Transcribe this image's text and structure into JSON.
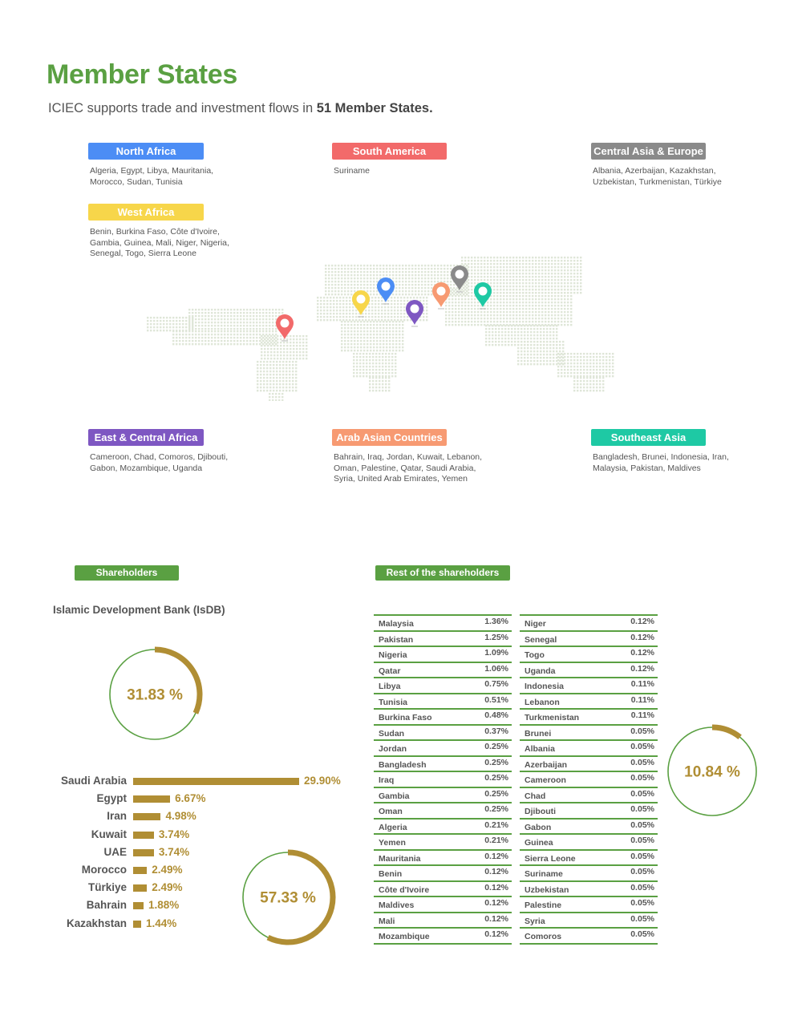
{
  "header": {
    "title": "Member States",
    "subtitle_prefix": "ICIEC supports trade and investment flows in ",
    "subtitle_bold": "51 Member States."
  },
  "regions": [
    {
      "key": "north_africa",
      "name": "North Africa",
      "color": "#4c8df5",
      "lines": [
        "Algeria, Egypt, Libya, Mauritania,",
        "Morocco, Sudan, Tunisia"
      ]
    },
    {
      "key": "south_america",
      "name": "South America",
      "color": "#f26a6a",
      "lines": [
        "Suriname"
      ]
    },
    {
      "key": "central_asia_europe",
      "name": "Central Asia & Europe",
      "color": "#8a8a8a",
      "lines": [
        "Albania, Azerbaijan, Kazakhstan,",
        "Uzbekistan, Turkmenistan, Türkiye"
      ]
    },
    {
      "key": "west_africa",
      "name": "West Africa",
      "color": "#f7d64a",
      "lines": [
        "Benin, Burkina Faso, Côte d'Ivoire,",
        "Gambia, Guinea, Mali, Niger, Nigeria,",
        "Senegal, Togo, Sierra Leone"
      ]
    },
    {
      "key": "east_central_africa",
      "name": "East & Central Africa",
      "color": "#7e57c2",
      "lines": [
        "Cameroon, Chad, Comoros, Djibouti,",
        "Gabon, Mozambique, Uganda"
      ]
    },
    {
      "key": "arab_asian",
      "name": "Arab Asian Countries",
      "color": "#f79a72",
      "lines": [
        "Bahrain, Iraq, Jordan, Kuwait, Lebanon,",
        "Oman, Palestine, Qatar, Saudi Arabia,",
        "Syria, United Arab Emirates, Yemen"
      ]
    },
    {
      "key": "southeast_asia",
      "name": "Southeast Asia",
      "color": "#1ec9a4",
      "lines": [
        "Bangladesh, Brunei, Indonesia, Iran,",
        "Malaysia, Pakistan, Maldives"
      ]
    }
  ],
  "map": {
    "icon": "world-map-icon",
    "pin_icon": "map-pin-icon",
    "pin_colors": [
      "#f26a6a",
      "#f7d64a",
      "#4c8df5",
      "#7e57c2",
      "#f79a72",
      "#8a8a8a",
      "#1ec9a4"
    ]
  },
  "shareholders": {
    "label": "Shareholders",
    "isdb_label": "Islamic Development Bank (IsDB)",
    "isdb_value": "31.83 %",
    "isdb_fraction": 0.3183,
    "countries_value": "57.33 %",
    "countries_fraction": 0.5733,
    "accent": "#b08e34",
    "ring_color": "#5aa042",
    "bars": [
      {
        "name": "Saudi Arabia",
        "value": 29.9,
        "label": "29.90%"
      },
      {
        "name": "Egypt",
        "value": 6.67,
        "label": "6.67%"
      },
      {
        "name": "Iran",
        "value": 4.98,
        "label": "4.98%"
      },
      {
        "name": "Kuwait",
        "value": 3.74,
        "label": "3.74%"
      },
      {
        "name": "UAE",
        "value": 3.74,
        "label": "3.74%"
      },
      {
        "name": "Morocco",
        "value": 2.49,
        "label": "2.49%"
      },
      {
        "name": "Türkiye",
        "value": 2.49,
        "label": "2.49%"
      },
      {
        "name": "Bahrain",
        "value": 1.88,
        "label": "1.88%"
      },
      {
        "name": "Kazakhstan",
        "value": 1.44,
        "label": "1.44%"
      }
    ]
  },
  "rest": {
    "label": "Rest of the shareholders",
    "value": "10.84 %",
    "fraction": 0.1084,
    "left": [
      [
        "Malaysia",
        "1.36%"
      ],
      [
        "Pakistan",
        "1.25%"
      ],
      [
        "Nigeria",
        "1.09%"
      ],
      [
        "Qatar",
        "1.06%"
      ],
      [
        "Libya",
        "0.75%"
      ],
      [
        "Tunisia",
        "0.51%"
      ],
      [
        "Burkina Faso",
        "0.48%"
      ],
      [
        "Sudan",
        "0.37%"
      ],
      [
        "Jordan",
        "0.25%"
      ],
      [
        "Bangladesh",
        "0.25%"
      ],
      [
        "Iraq",
        "0.25%"
      ],
      [
        "Gambia",
        "0.25%"
      ],
      [
        "Oman",
        "0.25%"
      ],
      [
        "Algeria",
        "0.21%"
      ],
      [
        "Yemen",
        "0.21%"
      ],
      [
        "Mauritania",
        "0.12%"
      ],
      [
        "Benin",
        "0.12%"
      ],
      [
        "Côte d'Ivoire",
        "0.12%"
      ],
      [
        "Maldives",
        "0.12%"
      ],
      [
        "Mali",
        "0.12%"
      ],
      [
        "Mozambique",
        "0.12%"
      ]
    ],
    "right": [
      [
        "Niger",
        "0.12%"
      ],
      [
        "Senegal",
        "0.12%"
      ],
      [
        "Togo",
        "0.12%"
      ],
      [
        "Uganda",
        "0.12%"
      ],
      [
        "Indonesia",
        "0.11%"
      ],
      [
        "Lebanon",
        "0.11%"
      ],
      [
        "Turkmenistan",
        "0.11%"
      ],
      [
        "Brunei",
        "0.05%"
      ],
      [
        "Albania",
        "0.05%"
      ],
      [
        "Azerbaijan",
        "0.05%"
      ],
      [
        "Cameroon",
        "0.05%"
      ],
      [
        "Chad",
        "0.05%"
      ],
      [
        "Djibouti",
        "0.05%"
      ],
      [
        "Gabon",
        "0.05%"
      ],
      [
        "Guinea",
        "0.05%"
      ],
      [
        "Sierra Leone",
        "0.05%"
      ],
      [
        "Suriname",
        "0.05%"
      ],
      [
        "Uzbekistan",
        "0.05%"
      ],
      [
        "Palestine",
        "0.05%"
      ],
      [
        "Syria",
        "0.05%"
      ],
      [
        "Comoros",
        "0.05%"
      ]
    ]
  }
}
